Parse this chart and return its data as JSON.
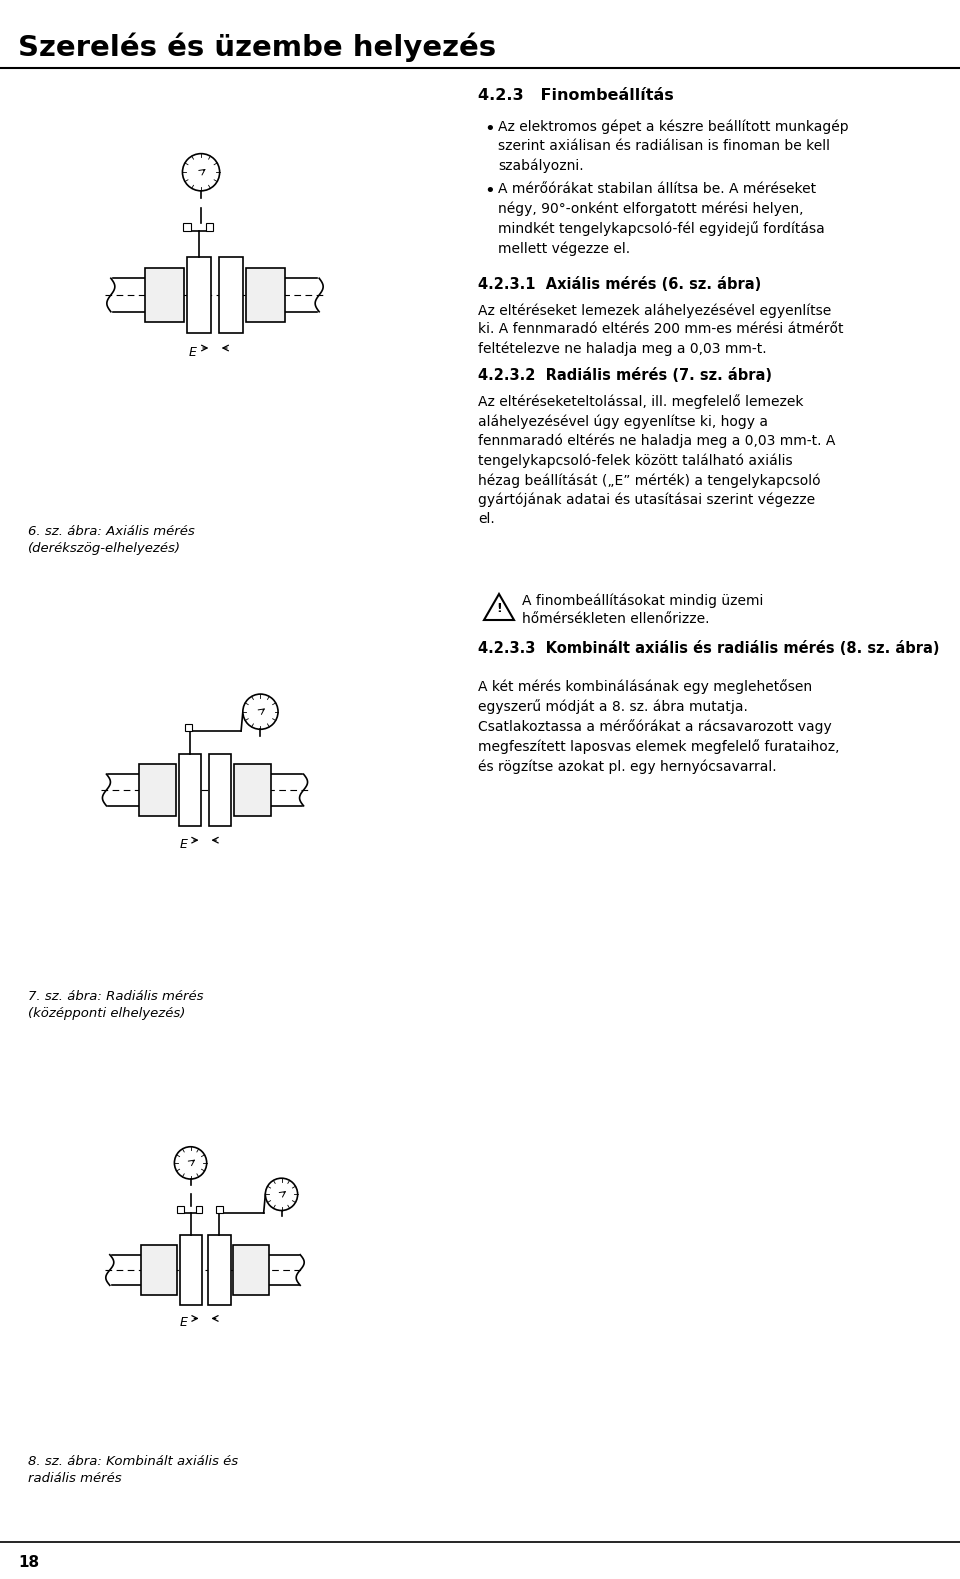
{
  "title": "Szerelés és üzembe helyezés",
  "page_number": "18",
  "bg_color": "#ffffff",
  "text_color": "#000000",
  "section_423": "4.2.3   Finombeállítás",
  "bullet1": "Az elektromos gépet a készre beállított munkagép szerint axiálisan és radiálisan is finoman be kell szabályozni.",
  "bullet2": "A mérőórákat stabilan állítsa be. A méréseket négy, 90°-onként elforgatott mérési helyen, mindkét tengelykapcsoló-fél egyidejű fordítása mellett végezze el.",
  "section_4231": "4.2.3.1  Axiális mérés (6. sz. ábra)",
  "text_4231": "Az eltéréseket lemezek aláhelyezésével egyenlítse ki. A fennmaradó eltérés 200 mm-es mérési átmérőt feltételezve ne haladja meg a 0,03 mm-t.",
  "section_4232": "4.2.3.2  Radiális mérés (7. sz. ábra)",
  "text_4232a": "Az eltéréseketeltolással, ill. megfelelő lemezek aláhelyezésével úgy egyenlítse ki, hogy a fennmaradó eltérés ne haladja meg a 0,03 mm-t. A tengelykapcsoló-felek között található axiális hézag beállítását („E” mérték) a tengelykapcsoló gyártójának adatai és utasításai szerint végezze el.",
  "warning_text": "A finombeállításokat mindig üzemi hőmérsékleten ellenőrizze.",
  "section_4233": "4.2.3.3  Kombinált axiális és radiális mérés (8. sz. ábra)",
  "text_4233": "A két mérés kombinálásának egy meglehetősen egyszerű módját a 8. sz. ábra mutatja. Csatlakoztassa a mérőórákat a rácsavarozott vagy megfeszített laposvas elemek megfelelő furataihoz, és rögzítse azokat pl. egy hernyócsavarral.",
  "fig6_caption": "6. sz. ábra: Axiális mérés\n(derékszög-elhelyezés)",
  "fig7_caption": "7. sz. ábra: Radiális mérés\n(középponti elhelyezés)",
  "fig8_caption": "8. sz. ábra: Kombinált axiális és\nradiális mérés"
}
